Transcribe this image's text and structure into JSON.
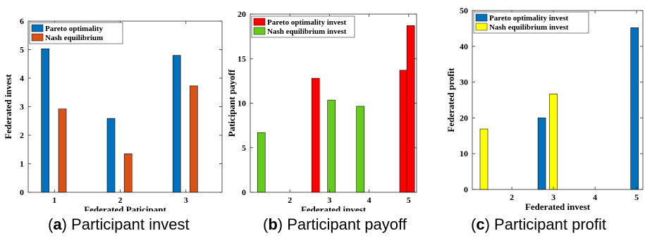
{
  "chart_data": [
    {
      "type": "bar",
      "caption_letter": "a",
      "caption_text": "Participant invest",
      "xlabel": "Federated Paticipant",
      "ylabel": "Federated invest",
      "ylim": [
        0,
        6
      ],
      "yticks": [
        "0",
        "1",
        "2",
        "3",
        "4",
        "5",
        "6"
      ],
      "xticks": [
        {
          "value": 1,
          "label": "1"
        },
        {
          "value": 2,
          "label": "2"
        },
        {
          "value": 3,
          "label": "3"
        }
      ],
      "xlim": [
        0.6,
        3.55
      ],
      "legend_position": "top-left",
      "grid": false,
      "series": [
        {
          "name": "Pareto optimality",
          "color": "#0072BD",
          "points": [
            {
              "x": 0.86,
              "y": 5.03
            },
            {
              "x": 1.86,
              "y": 2.59
            },
            {
              "x": 2.86,
              "y": 4.8
            }
          ]
        },
        {
          "name": "Nash equilibrium",
          "color": "#D95319",
          "points": [
            {
              "x": 1.12,
              "y": 2.92
            },
            {
              "x": 2.12,
              "y": 1.35
            },
            {
              "x": 3.12,
              "y": 3.73
            }
          ]
        }
      ]
    },
    {
      "type": "bar",
      "caption_letter": "b",
      "caption_text": "Participant payoff",
      "xlabel": "Federated invest",
      "ylabel": "Paticipant payoff",
      "ylim": [
        0,
        20
      ],
      "yticks": [
        "0",
        "5",
        "10",
        "15",
        "20"
      ],
      "xticks": [
        {
          "value": 2,
          "label": "2"
        },
        {
          "value": 3,
          "label": "3"
        },
        {
          "value": 4,
          "label": "4"
        },
        {
          "value": 5,
          "label": "5"
        }
      ],
      "xlim": [
        1.0,
        5.2
      ],
      "legend_position": "top-left",
      "grid": false,
      "series": [
        {
          "name": "Pareto optimality invest",
          "color": "#FF0000",
          "points": [
            {
              "x": 2.65,
              "y": 12.8
            },
            {
              "x": 4.87,
              "y": 13.7
            },
            {
              "x": 5.05,
              "y": 18.7
            }
          ]
        },
        {
          "name": "Nash equilibrium invest",
          "color": "#66CC1A",
          "points": [
            {
              "x": 1.28,
              "y": 6.7
            },
            {
              "x": 3.05,
              "y": 10.35
            },
            {
              "x": 3.78,
              "y": 9.65
            }
          ]
        }
      ]
    },
    {
      "type": "bar",
      "caption_letter": "c",
      "caption_text": "Participant profit",
      "xlabel": "Federated invest",
      "ylabel": "Federated profit",
      "ylim": [
        0,
        50
      ],
      "yticks": [
        "0",
        "10",
        "20",
        "30",
        "40",
        "50"
      ],
      "xticks": [
        {
          "value": 2,
          "label": "2"
        },
        {
          "value": 3,
          "label": "3"
        },
        {
          "value": 4,
          "label": "4"
        },
        {
          "value": 5,
          "label": "5"
        }
      ],
      "xlim": [
        1.05,
        5.15
      ],
      "legend_position": "top-left",
      "grid": false,
      "series": [
        {
          "name": "Pareto optimality invest",
          "color": "#0072BD",
          "points": [
            {
              "x": 2.72,
              "y": 20.0
            },
            {
              "x": 4.95,
              "y": 45.2
            }
          ]
        },
        {
          "name": "Nash equilibrium invest",
          "color": "#FFFF00",
          "points": [
            {
              "x": 1.33,
              "y": 16.9
            },
            {
              "x": 3.0,
              "y": 26.7
            }
          ]
        }
      ]
    }
  ]
}
